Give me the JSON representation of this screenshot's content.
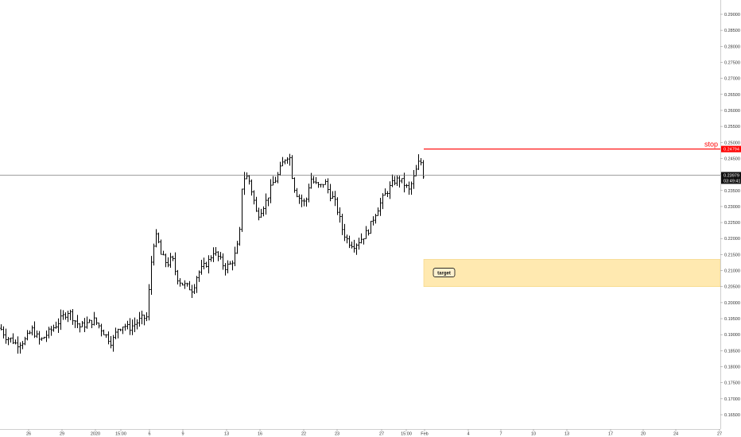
{
  "chart_data": {
    "type": "ohlc",
    "price_axis": {
      "ticks": [
        "0.16500",
        "0.17000",
        "0.17500",
        "0.18000",
        "0.18500",
        "0.19000",
        "0.19500",
        "0.20000",
        "0.20500",
        "0.21000",
        "0.21500",
        "0.22000",
        "0.22500",
        "0.23000",
        "0.23500",
        "0.24000",
        "0.24500",
        "0.25000",
        "0.25500",
        "0.26000",
        "0.26500",
        "0.27000",
        "0.27500",
        "0.28000",
        "0.28500",
        "0.29000"
      ],
      "ylim": [
        0.1625,
        0.2925
      ]
    },
    "time_axis": {
      "ticks": [
        "26",
        "29",
        "2020",
        "15:00",
        "6",
        "9",
        "13",
        "16",
        "22",
        "23",
        "27",
        "15:00",
        "Feb",
        "4",
        "7",
        "10",
        "13",
        "17",
        "20",
        "24",
        "27"
      ]
    },
    "last_price": "0.23979",
    "countdown": "03:49:41",
    "stop": {
      "label": "stop",
      "price": "0.24794",
      "color": "#ff0000"
    },
    "target": {
      "label": "target",
      "low": 0.205,
      "high": 0.2135,
      "color": "#ffe9b0"
    },
    "series": [
      {
        "keypoints": [
          [
            0,
            0.192
          ],
          [
            8,
            0.189
          ],
          [
            14,
            0.1885
          ],
          [
            20,
            0.187
          ],
          [
            30,
            0.188
          ],
          [
            40,
            0.1915
          ],
          [
            50,
            0.188
          ],
          [
            60,
            0.1905
          ],
          [
            70,
            0.193
          ],
          [
            80,
            0.196
          ],
          [
            86,
            0.1975
          ],
          [
            92,
            0.195
          ],
          [
            100,
            0.1925
          ],
          [
            110,
            0.1935
          ],
          [
            118,
            0.1945
          ],
          [
            125,
            0.1925
          ],
          [
            132,
            0.19
          ],
          [
            140,
            0.1875
          ],
          [
            148,
            0.192
          ],
          [
            155,
            0.193
          ],
          [
            162,
            0.192
          ],
          [
            170,
            0.1935
          ],
          [
            178,
            0.195
          ],
          [
            185,
            0.1955
          ],
          [
            188,
            0.2075
          ],
          [
            192,
            0.218
          ],
          [
            197,
            0.221
          ],
          [
            202,
            0.215
          ],
          [
            210,
            0.212
          ],
          [
            216,
            0.214
          ],
          [
            222,
            0.208
          ],
          [
            228,
            0.206
          ],
          [
            235,
            0.205
          ],
          [
            242,
            0.204
          ],
          [
            248,
            0.209
          ],
          [
            255,
            0.211
          ],
          [
            262,
            0.213
          ],
          [
            268,
            0.216
          ],
          [
            275,
            0.214
          ],
          [
            282,
            0.211
          ],
          [
            290,
            0.212
          ],
          [
            297,
            0.216
          ],
          [
            301,
            0.222
          ],
          [
            304,
            0.236
          ],
          [
            308,
            0.24
          ],
          [
            313,
            0.238
          ],
          [
            318,
            0.233
          ],
          [
            323,
            0.227
          ],
          [
            328,
            0.229
          ],
          [
            335,
            0.232
          ],
          [
            342,
            0.237
          ],
          [
            348,
            0.239
          ],
          [
            354,
            0.243
          ],
          [
            360,
            0.246
          ],
          [
            365,
            0.245
          ],
          [
            368,
            0.237
          ],
          [
            373,
            0.234
          ],
          [
            378,
            0.232
          ],
          [
            384,
            0.231
          ],
          [
            390,
            0.239
          ],
          [
            396,
            0.237
          ],
          [
            402,
            0.236
          ],
          [
            408,
            0.238
          ],
          [
            414,
            0.234
          ],
          [
            420,
            0.232
          ],
          [
            425,
            0.228
          ],
          [
            430,
            0.223
          ],
          [
            435,
            0.22
          ],
          [
            440,
            0.2185
          ],
          [
            446,
            0.218
          ],
          [
            452,
            0.2195
          ],
          [
            458,
            0.221
          ],
          [
            464,
            0.223
          ],
          [
            470,
            0.227
          ],
          [
            476,
            0.23
          ],
          [
            482,
            0.233
          ],
          [
            490,
            0.236
          ],
          [
            496,
            0.238
          ],
          [
            502,
            0.2385
          ],
          [
            508,
            0.237
          ],
          [
            514,
            0.235
          ],
          [
            520,
            0.239
          ],
          [
            524,
            0.242
          ],
          [
            528,
            0.245
          ],
          [
            532,
            0.24
          ],
          [
            534,
            0.2398
          ]
        ]
      }
    ]
  }
}
